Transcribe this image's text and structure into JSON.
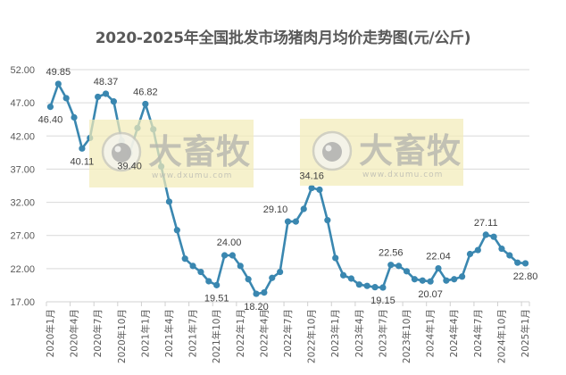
{
  "chart_data": {
    "type": "line",
    "title": "2020-2025年全国批发市场猪肉月均价走势图(元/公斤)",
    "xlabel": "",
    "ylabel": "",
    "ylim": [
      17.0,
      52.0
    ],
    "yticks": [
      "52.00",
      "47.00",
      "42.00",
      "37.00",
      "32.00",
      "27.00",
      "22.00",
      "17.00"
    ],
    "grid": true,
    "legend": "none",
    "line_color": "#3a87b0",
    "x": [
      "2020年1月",
      "2020年2月",
      "2020年3月",
      "2020年4月",
      "2020年5月",
      "2020年6月",
      "2020年7月",
      "2020年8月",
      "2020年9月",
      "2020年10月",
      "2020年11月",
      "2020年12月",
      "2021年1月",
      "2021年2月",
      "2021年3月",
      "2021年4月",
      "2021年5月",
      "2021年6月",
      "2021年7月",
      "2021年8月",
      "2021年9月",
      "2021年10月",
      "2021年11月",
      "2021年12月",
      "2022年1月",
      "2022年2月",
      "2022年3月",
      "2022年4月",
      "2022年5月",
      "2022年6月",
      "2022年7月",
      "2022年8月",
      "2022年9月",
      "2022年10月",
      "2022年11月",
      "2022年12月",
      "2023年1月",
      "2023年2月",
      "2023年3月",
      "2023年4月",
      "2023年5月",
      "2023年6月",
      "2023年7月",
      "2023年8月",
      "2023年9月",
      "2023年10月",
      "2023年11月",
      "2023年12月",
      "2024年1月",
      "2024年2月",
      "2024年3月",
      "2024年4月",
      "2024年5月",
      "2024年6月",
      "2024年7月",
      "2024年8月",
      "2024年9月",
      "2024年10月",
      "2024年11月",
      "2024年12月",
      "2025年1月"
    ],
    "xtick_labels": [
      "2020年1月",
      "2020年4月",
      "2020年7月",
      "2020年10月",
      "2021年1月",
      "2021年4月",
      "2021年7月",
      "2021年10月",
      "2022年1月",
      "2022年4月",
      "2022年7月",
      "2022年10月",
      "2023年1月",
      "2023年4月",
      "2023年7月",
      "2023年10月",
      "2024年1月",
      "2024年4月",
      "2024年7月",
      "2024年10月",
      "2025年1月"
    ],
    "series": [
      {
        "name": "猪肉月均价",
        "values": [
          46.4,
          49.85,
          47.7,
          44.8,
          40.11,
          41.7,
          47.9,
          48.37,
          47.2,
          41.3,
          39.4,
          43.2,
          46.82,
          43.0,
          37.4,
          32.1,
          27.8,
          23.5,
          22.4,
          21.5,
          20.1,
          19.51,
          24.0,
          24.0,
          22.4,
          20.4,
          18.2,
          18.4,
          20.6,
          21.5,
          29.1,
          29.1,
          31.0,
          34.16,
          33.9,
          29.3,
          23.6,
          21.0,
          20.5,
          19.6,
          19.4,
          19.2,
          19.15,
          22.56,
          22.4,
          21.6,
          20.4,
          20.2,
          20.07,
          22.04,
          20.2,
          20.4,
          20.8,
          24.2,
          24.8,
          27.11,
          26.8,
          25.0,
          24.0,
          22.9,
          22.8
        ]
      }
    ],
    "annotations": [
      {
        "index": 0,
        "text": "46.40",
        "pos": "below"
      },
      {
        "index": 1,
        "text": "49.85",
        "pos": "above"
      },
      {
        "index": 4,
        "text": "40.11",
        "pos": "below"
      },
      {
        "index": 7,
        "text": "48.37",
        "pos": "above"
      },
      {
        "index": 10,
        "text": "39.40",
        "pos": "below"
      },
      {
        "index": 12,
        "text": "46.82",
        "pos": "above"
      },
      {
        "index": 21,
        "text": "19.51",
        "pos": "below"
      },
      {
        "index": 22,
        "text": "24.00",
        "pos": "above-right"
      },
      {
        "index": 26,
        "text": "18.20",
        "pos": "below"
      },
      {
        "index": 30,
        "text": "29.10",
        "pos": "above-left"
      },
      {
        "index": 33,
        "text": "34.16",
        "pos": "above"
      },
      {
        "index": 42,
        "text": "19.15",
        "pos": "below"
      },
      {
        "index": 43,
        "text": "22.56",
        "pos": "above"
      },
      {
        "index": 48,
        "text": "20.07",
        "pos": "below"
      },
      {
        "index": 49,
        "text": "22.04",
        "pos": "above"
      },
      {
        "index": 55,
        "text": "27.11",
        "pos": "above"
      },
      {
        "index": 60,
        "text": "22.80",
        "pos": "below"
      }
    ]
  },
  "watermark": {
    "brand": "大畜牧",
    "url": "www.dxumu.com",
    "bg_color": "#f3ecb8"
  }
}
